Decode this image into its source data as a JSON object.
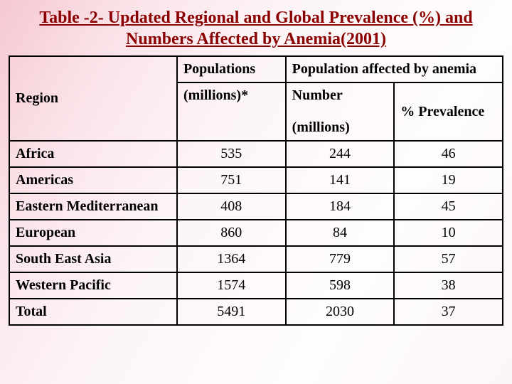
{
  "title": "Table -2- Updated Regional and Global Prevalence (%) and Numbers Affected by Anemia(2001)",
  "table": {
    "type": "table",
    "background_gradient": [
      "#f5c8d0",
      "#fdf5f7",
      "#fefcfc"
    ],
    "border_color": "#000000",
    "title_color": "#8b0000",
    "text_color": "#000000",
    "font_family": "Times New Roman",
    "title_fontsize": 24,
    "cell_fontsize": 20,
    "header": {
      "region": "Region",
      "populations": "Populations",
      "populations_unit": "(millions)*",
      "affected_span": "Population affected by anemia",
      "number": "Number",
      "number_unit": "(millions)",
      "prevalence": "% Prevalence"
    },
    "columns": [
      "Region",
      "Populations (millions)*",
      "Number (millions)",
      "% Prevalence"
    ],
    "rows": [
      {
        "region": "Africa",
        "populations": "535",
        "number": "244",
        "prevalence": "46"
      },
      {
        "region": "Americas",
        "populations": "751",
        "number": "141",
        "prevalence": "19"
      },
      {
        "region": "Eastern Mediterranean",
        "populations": "408",
        "number": "184",
        "prevalence": "45"
      },
      {
        "region": "European",
        "populations": "860",
        "number": "84",
        "prevalence": "10"
      },
      {
        "region": "South East Asia",
        "populations": "1364",
        "number": "779",
        "prevalence": "57"
      },
      {
        "region": "Western Pacific",
        "populations": "1574",
        "number": "598",
        "prevalence": "38"
      },
      {
        "region": "Total",
        "populations": "5491",
        "number": "2030",
        "prevalence": "37"
      }
    ]
  }
}
